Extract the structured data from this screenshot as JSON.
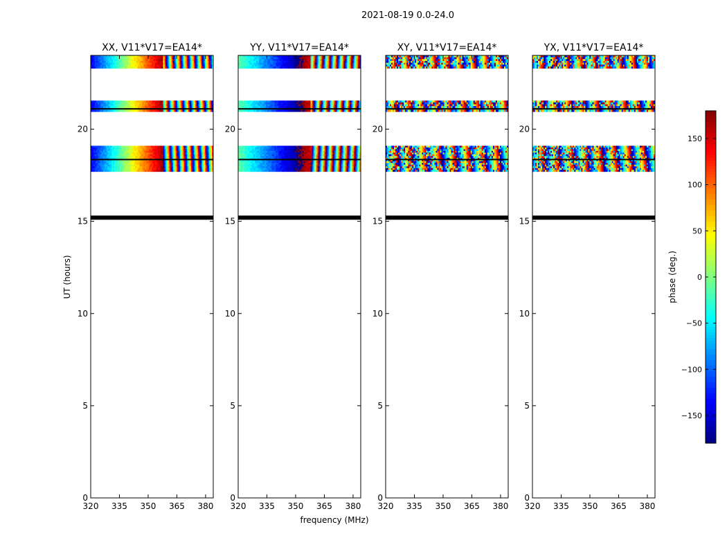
{
  "suptitle": "2021-08-19 0.0-24.0",
  "xlabel": "frequency (MHz)",
  "ylabel": "UT (hours)",
  "colorbar": {
    "label": "phase (deg.)",
    "range": [
      -180,
      180
    ],
    "ticks": [
      150,
      100,
      50,
      0,
      -50,
      -100,
      -150
    ],
    "tick_labels": [
      "150",
      "100",
      "50",
      "0",
      "−50",
      "−100",
      "−150"
    ],
    "colormap": "jet"
  },
  "chart_data": [
    {
      "type": "heatmap",
      "title": "XX, V11*V17=EA14*",
      "pol": "XX",
      "xlim": [
        320,
        384
      ],
      "ylim": [
        0,
        24
      ],
      "xticks": [
        320,
        335,
        350,
        365,
        380
      ],
      "yticks": [
        0,
        5,
        10,
        15,
        20
      ],
      "data_bands_ut": [
        [
          23.3,
          24.0
        ],
        [
          20.95,
          21.55
        ],
        [
          17.7,
          19.1
        ]
      ],
      "flagged_lines_ut": [
        15.2,
        21.1,
        18.35
      ],
      "phase_pattern": "smooth gradient ~ -140 deg at 320 MHz to ~170 deg at 358 MHz, rapid fringes above 360 MHz"
    },
    {
      "type": "heatmap",
      "title": "YY, V11*V17=EA14*",
      "pol": "YY",
      "xlim": [
        320,
        384
      ],
      "ylim": [
        0,
        24
      ],
      "xticks": [
        320,
        335,
        350,
        365,
        380
      ],
      "yticks": [
        0,
        5,
        10,
        15,
        20
      ],
      "data_bands_ut": [
        [
          23.3,
          24.0
        ],
        [
          20.95,
          21.55
        ],
        [
          17.7,
          19.1
        ]
      ],
      "flagged_lines_ut": [
        15.2,
        21.1,
        18.35
      ],
      "phase_pattern": "smooth gradient ~ 0 deg at 320 MHz wrapping through -180 to +180 near 360 MHz, fringes above"
    },
    {
      "type": "heatmap",
      "title": "XY, V11*V17=EA14*",
      "pol": "XY",
      "xlim": [
        320,
        384
      ],
      "ylim": [
        0,
        24
      ],
      "xticks": [
        320,
        335,
        350,
        365,
        380
      ],
      "yticks": [
        0,
        5,
        10,
        15,
        20
      ],
      "data_bands_ut": [
        [
          23.3,
          24.0
        ],
        [
          20.95,
          21.55
        ],
        [
          17.7,
          19.1
        ]
      ],
      "flagged_lines_ut": [
        15.2,
        21.1,
        18.35
      ],
      "phase_pattern": "noisy random phase with fringes toward high frequency"
    },
    {
      "type": "heatmap",
      "title": "YX, V11*V17=EA14*",
      "pol": "YX",
      "xlim": [
        320,
        384
      ],
      "ylim": [
        0,
        24
      ],
      "xticks": [
        320,
        335,
        350,
        365,
        380
      ],
      "yticks": [
        0,
        5,
        10,
        15,
        20
      ],
      "data_bands_ut": [
        [
          23.3,
          24.0
        ],
        [
          20.95,
          21.55
        ],
        [
          17.7,
          19.1
        ]
      ],
      "flagged_lines_ut": [
        15.2,
        21.1,
        18.35
      ],
      "phase_pattern": "noisy random phase with fringes toward high frequency"
    }
  ]
}
